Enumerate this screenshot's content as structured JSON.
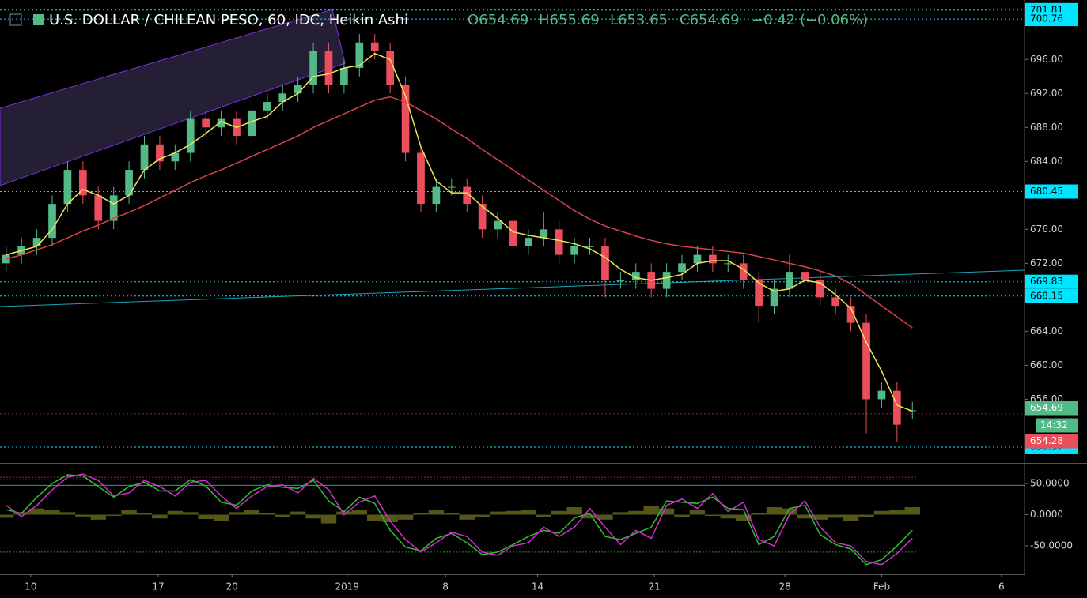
{
  "header": {
    "symbol": "U.S. DOLLAR / CHILEAN PESO, 60, IDC, Heikin Ashi",
    "ohlc": [
      "O654.69",
      "H655.69",
      "L653.65",
      "C654.69"
    ],
    "change": "−0.42 (−0.06%)",
    "countdown": "14:32"
  },
  "chart_data": [
    {
      "type": "candlestick",
      "up_color": "#53b987",
      "down_color": "#eb4d5c",
      "x": [
        0,
        1,
        2,
        3,
        4,
        5,
        6,
        7,
        8,
        9,
        10,
        11,
        12,
        13,
        14,
        15,
        16,
        17,
        18,
        19,
        20,
        21,
        22,
        23,
        24,
        25,
        26,
        27,
        28,
        29,
        30,
        31,
        32,
        33,
        34,
        35,
        36,
        37,
        38,
        39,
        40,
        41,
        42,
        43,
        44,
        45,
        46,
        47,
        48,
        49,
        50,
        51,
        52,
        53,
        54,
        55,
        56,
        57,
        58,
        59
      ],
      "open": [
        672,
        673,
        674,
        675,
        679,
        683,
        680,
        677,
        680,
        683,
        686,
        684,
        685,
        689,
        688,
        689,
        687,
        690,
        691,
        692,
        693,
        697,
        693,
        695,
        698,
        697,
        693,
        685,
        679,
        681,
        681,
        679,
        676,
        677,
        674,
        675,
        676,
        673,
        674,
        674,
        670,
        670,
        671,
        669,
        671,
        672,
        673,
        672,
        672,
        670,
        667,
        669,
        671,
        670,
        668,
        667,
        665,
        656,
        657,
        654.69
      ],
      "high": [
        674,
        675,
        676,
        680,
        684,
        684,
        681,
        681,
        684,
        687,
        687,
        686,
        690,
        690,
        690,
        690,
        691,
        692,
        693,
        694,
        698,
        698,
        696,
        699,
        699,
        698,
        694,
        686,
        682,
        682,
        682,
        680,
        678,
        678,
        676,
        678,
        677,
        675,
        675,
        675,
        671,
        672,
        672,
        672,
        673,
        674,
        674,
        673,
        673,
        671,
        670,
        673,
        672,
        671,
        669,
        668,
        666,
        658,
        658,
        655.69
      ],
      "low": [
        671,
        672,
        673,
        674,
        678,
        679,
        676,
        676,
        679,
        682,
        683,
        683,
        684,
        687,
        687,
        686,
        686,
        689,
        690,
        691,
        692,
        692,
        692,
        694,
        696,
        692,
        684,
        678,
        678,
        680,
        678,
        675,
        675,
        673,
        673,
        674,
        672,
        672,
        673,
        668,
        669,
        669,
        668,
        668,
        670,
        671,
        671,
        671,
        669,
        665,
        666,
        668,
        669,
        667,
        666,
        664,
        652,
        655,
        651,
        653.65
      ],
      "close": [
        673,
        674,
        675,
        679,
        683,
        680,
        677,
        680,
        683,
        686,
        684,
        685,
        689,
        688,
        689,
        687,
        690,
        691,
        692,
        693,
        697,
        693,
        695,
        698,
        697,
        693,
        685,
        679,
        681,
        681,
        679,
        676,
        677,
        674,
        675,
        676,
        673,
        674,
        674,
        670,
        670,
        671,
        669,
        671,
        672,
        673,
        672,
        672,
        670,
        667,
        669,
        671,
        670,
        668,
        667,
        665,
        656,
        657,
        653,
        654.69
      ],
      "series": [
        {
          "color": "#f0e35a",
          "values": [
            673,
            673.5,
            674,
            676,
            679,
            680.7,
            680,
            679,
            680,
            683,
            684.3,
            685,
            686,
            687.3,
            688.7,
            688,
            688.7,
            689.3,
            691,
            692,
            694,
            694.3,
            695,
            695.3,
            696.7,
            696,
            691.7,
            685.7,
            681.7,
            680.3,
            680.3,
            678.7,
            677.3,
            675.7,
            675.3,
            675,
            674.7,
            674.3,
            673.7,
            672.7,
            671.3,
            670.3,
            670,
            670.3,
            670.7,
            672,
            672.3,
            672.3,
            671.3,
            669.7,
            668.7,
            669,
            670,
            669.7,
            668.3,
            666.7,
            662.7,
            659.3,
            655.3,
            654.6
          ]
        },
        {
          "color": "#d9434b",
          "values": [
            672.5,
            673,
            673.6,
            674.2,
            675,
            675.8,
            676.5,
            677.3,
            678,
            678.8,
            679.7,
            680.6,
            681.5,
            682.3,
            683,
            683.8,
            684.6,
            685.4,
            686.2,
            687,
            688,
            688.8,
            689.6,
            690.4,
            691.2,
            691.6,
            691,
            690,
            689,
            687.8,
            686.7,
            685.4,
            684.2,
            683,
            681.8,
            680.6,
            679.4,
            678.2,
            677.2,
            676.4,
            675.8,
            675.2,
            674.7,
            674.3,
            674,
            673.8,
            673.6,
            673.4,
            673.2,
            672.8,
            672.4,
            672,
            671.6,
            671.1,
            670.5,
            669.6,
            668.3,
            667,
            665.7,
            664.4
          ]
        }
      ],
      "levels": [
        701.81,
        700.76,
        680.45,
        669.83,
        668.15,
        650.37
      ],
      "level_color": "#00e5ff",
      "bid_level": 654.28,
      "bid_color": "#e84e5b",
      "xlim": [
        -0.4,
        66.3
      ],
      "xticks": [
        {
          "value": 1.6,
          "label": "10"
        },
        {
          "value": 9.9,
          "label": "17"
        },
        {
          "value": 14.7,
          "label": "20"
        },
        {
          "value": 22.2,
          "label": "2019"
        },
        {
          "value": 28.6,
          "label": "8"
        },
        {
          "value": 34.6,
          "label": "14"
        },
        {
          "value": 42.2,
          "label": "21"
        },
        {
          "value": 50.7,
          "label": "28"
        },
        {
          "value": 57,
          "label": "Feb"
        },
        {
          "value": 64.8,
          "label": "6"
        }
      ],
      "ylim": [
        648.6,
        703
      ],
      "yticks": [
        {
          "value": 656,
          "label": "656.00"
        },
        {
          "value": 660,
          "label": "660.00"
        },
        {
          "value": 664,
          "label": "664.00"
        },
        {
          "value": 668,
          "label": "668.00"
        },
        {
          "value": 672,
          "label": "672.00"
        },
        {
          "value": 676,
          "label": "676.00"
        },
        {
          "value": 680,
          "label": "680.00"
        },
        {
          "value": 684,
          "label": "684.00"
        },
        {
          "value": 688,
          "label": "688.00"
        },
        {
          "value": 692,
          "label": "692.00"
        },
        {
          "value": 696,
          "label": "696.00"
        }
      ]
    },
    {
      "type": "oscillator",
      "x": [
        0,
        1,
        2,
        3,
        4,
        5,
        6,
        7,
        8,
        9,
        10,
        11,
        12,
        13,
        14,
        15,
        16,
        17,
        18,
        19,
        20,
        21,
        22,
        23,
        24,
        25,
        26,
        27,
        28,
        29,
        30,
        31,
        32,
        33,
        34,
        35,
        36,
        37,
        38,
        39,
        40,
        41,
        42,
        43,
        44,
        45,
        46,
        47,
        48,
        49,
        50,
        51,
        52,
        53,
        54,
        55,
        56,
        57,
        58,
        59
      ],
      "series": [
        {
          "color": "#2fbf2f",
          "values": [
            8,
            2,
            28,
            50,
            64,
            62,
            45,
            28,
            45,
            52,
            38,
            38,
            56,
            46,
            20,
            15,
            38,
            48,
            44,
            42,
            55,
            22,
            5,
            28,
            18,
            -25,
            -52,
            -58,
            -38,
            -30,
            -45,
            -64,
            -60,
            -48,
            -35,
            -25,
            -30,
            -5,
            2,
            -35,
            -40,
            -30,
            -20,
            22,
            20,
            18,
            28,
            10,
            8,
            -48,
            -35,
            10,
            15,
            -32,
            -48,
            -55,
            -80,
            -72,
            -50,
            -25
          ]
        },
        {
          "color": "#d02fd0",
          "values": [
            15,
            -3,
            15,
            40,
            60,
            65,
            55,
            30,
            35,
            55,
            45,
            30,
            52,
            55,
            30,
            10,
            30,
            45,
            48,
            35,
            58,
            40,
            0,
            20,
            30,
            -10,
            -40,
            -60,
            -45,
            -28,
            -35,
            -60,
            -65,
            -50,
            -45,
            -20,
            -35,
            -20,
            10,
            -20,
            -48,
            -25,
            -38,
            15,
            25,
            10,
            34,
            5,
            20,
            -40,
            -50,
            0,
            22,
            -20,
            -45,
            -50,
            -75,
            -80,
            -62,
            -38
          ]
        }
      ],
      "histogram": {
        "color": "#6b6b1f",
        "values": [
          -5,
          4,
          10,
          8,
          4,
          -3,
          -8,
          -2,
          8,
          3,
          -6,
          6,
          4,
          -7,
          -10,
          4,
          8,
          3,
          -4,
          5,
          -6,
          -14,
          5,
          8,
          -10,
          -12,
          -8,
          2,
          8,
          2,
          -8,
          -4,
          5,
          6,
          8,
          -4,
          6,
          12,
          -6,
          -8,
          4,
          6,
          14,
          10,
          -4,
          8,
          -2,
          -6,
          -10,
          3,
          12,
          10,
          -6,
          -8,
          -5,
          -10,
          -4,
          6,
          8,
          12
        ]
      },
      "bands": [
        {
          "value": 60,
          "color": "#b22222"
        },
        {
          "value": 56,
          "color": "#b22222"
        },
        {
          "value": -52,
          "color": "#2e8b2e"
        },
        {
          "value": -60,
          "color": "#2e8b2e"
        }
      ],
      "levels": [
        47
      ],
      "level_color": "#1aa3b8",
      "xlim": [
        -0.4,
        66.3
      ],
      "ylim": [
        -93,
        80.4
      ],
      "yticks": [
        {
          "value": 50,
          "label": "50.0000"
        },
        {
          "value": 0,
          "label": "0.0000"
        },
        {
          "value": -50,
          "label": "-50.0000"
        }
      ]
    }
  ]
}
